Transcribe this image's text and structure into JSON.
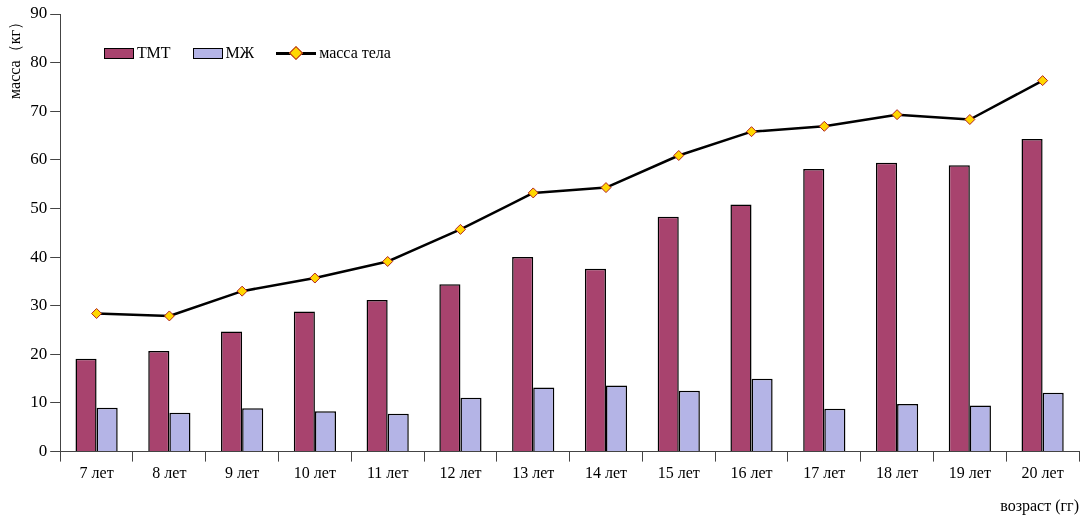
{
  "chart_data": {
    "type": "bar",
    "xlabel": "возраст (гг)",
    "ylabel": "масса（кг）",
    "categories": [
      "7 лет",
      "8 лет",
      "9 лет",
      "10 лет",
      "11 лет",
      "12 лет",
      "13 лет",
      "14 лет",
      "15 лет",
      "16 лет",
      "17 лет",
      "18 лет",
      "19 лет",
      "20 лет"
    ],
    "series": [
      {
        "name": "ТМТ",
        "color": "#a8436e",
        "values": [
          19.1,
          20.7,
          24.7,
          28.8,
          31.2,
          34.4,
          40.0,
          37.6,
          48.3,
          50.8,
          58.1,
          59.4,
          58.9,
          64.3
        ]
      },
      {
        "name": "МЖ",
        "color": "#b4b4e6",
        "values": [
          9.0,
          8.0,
          8.9,
          8.3,
          7.8,
          11.1,
          13.2,
          13.6,
          12.5,
          15.0,
          8.8,
          9.8,
          9.5,
          12.1
        ]
      },
      {
        "name": "масса тела",
        "type": "line",
        "color": "#000000",
        "values": [
          28.4,
          27.9,
          33.0,
          35.7,
          39.1,
          45.7,
          53.2,
          54.3,
          60.9,
          65.8,
          66.9,
          69.3,
          68.3,
          76.3
        ]
      }
    ],
    "ylim": [
      0,
      90
    ],
    "yticks": [
      0,
      10,
      20,
      30,
      40,
      50,
      60,
      70,
      80,
      90
    ],
    "grid": false,
    "legend": "top left",
    "marker": "diamond",
    "line_style": "solid"
  }
}
